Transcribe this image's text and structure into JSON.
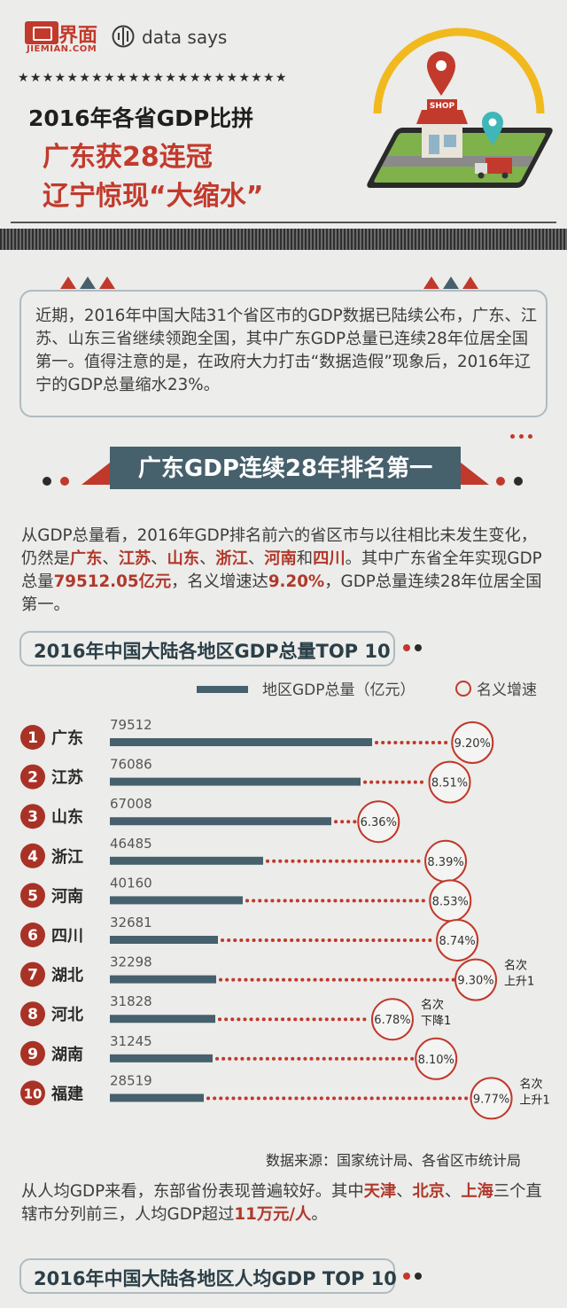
{
  "header": {
    "logo_cn": "界面",
    "logo_en": "JIEMIAN.COM",
    "brand2": "data says",
    "stars": "★★★★★★★★★★★★★★★★★★★★★★",
    "title_line1": "2016年各省GDP比拼",
    "title_line2": "广东获28连冠",
    "title_line3": "辽宁惊现“大缩水”",
    "shop_sign": "SHOP"
  },
  "intro": {
    "text": "近期，2016年中国大陆31个省区市的GDP数据已陆续公布，广东、江苏、山东三省继续领跑全国，其中广东GDP总量已连续28年位居全国第一。值得注意的是，在政府大力打击“数据造假”现象后，2016年辽宁的GDP总量缩水23%。"
  },
  "section1": {
    "banner": "广东GDP连续28年排名第一",
    "para": {
      "p1": "从GDP总量看，2016年GDP排名前六的省区市与以往相比未发生变化，仍然是",
      "h1": "广东",
      "s1": "、",
      "h2": "江苏",
      "s2": "、",
      "h3": "山东",
      "s3": "、",
      "h4": "浙江",
      "s4": "、",
      "h5": "河南",
      "s5": "和",
      "h6": "四川",
      "p2": "。其中广东省全年实现GDP总量",
      "h7": "79512.05亿元",
      "p3": "，名义增速达",
      "h8": "9.20%",
      "p4": "，GDP总量连续28年位居全国第一。"
    }
  },
  "chart_data": {
    "type": "bar",
    "title": "2016年中国大陆各地区GDP总量TOP 10",
    "legend_bar": "地区GDP总量（亿元）",
    "legend_circle": "名义增速",
    "ranks": [
      "1",
      "2",
      "3",
      "4",
      "5",
      "6",
      "7",
      "8",
      "9",
      "10"
    ],
    "categories": [
      "广东",
      "江苏",
      "山东",
      "浙江",
      "河南",
      "四川",
      "湖北",
      "河北",
      "湖南",
      "福建"
    ],
    "values": [
      79512,
      76086,
      67008,
      46485,
      40160,
      32681,
      32298,
      31828,
      31245,
      28519
    ],
    "growth": [
      9.2,
      8.51,
      6.36,
      8.39,
      8.53,
      8.74,
      9.3,
      6.78,
      8.1,
      9.77
    ],
    "growth_labels": [
      "9.20%",
      "8.51%",
      "6.36%",
      "8.39%",
      "8.53%",
      "8.74%",
      "9.30%",
      "6.78%",
      "8.10%",
      "9.77%"
    ],
    "notes": [
      "",
      "",
      "",
      "",
      "",
      "",
      "名次上升1",
      "名次下降1",
      "",
      "名次上升1"
    ],
    "note_lines": [
      [],
      [],
      [],
      [],
      [],
      [],
      [
        "名次",
        "上升1"
      ],
      [
        "名次",
        "下降1"
      ],
      [],
      [
        "名次",
        "上升1"
      ]
    ],
    "xlim": [
      0,
      100000
    ],
    "growth_axis": [
      0,
      10
    ],
    "source": "数据来源：国家统计局、各省区市统计局",
    "colors": {
      "bar": "#46606c",
      "rank": "#a93226",
      "dots": "#c0392b",
      "circle": "#c0392b"
    }
  },
  "section2": {
    "para": {
      "p1": "从人均GDP来看，东部省份表现普遍较好。其中",
      "h1": "天津",
      "s1": "、",
      "h2": "北京",
      "s2": "、",
      "h3": "上海",
      "p2": "三个直辖市分列前三，人均GDP超过",
      "h4": "11万元/人",
      "p3": "。"
    },
    "next_title": "2016年中国大陆各地区人均GDP TOP 10"
  }
}
